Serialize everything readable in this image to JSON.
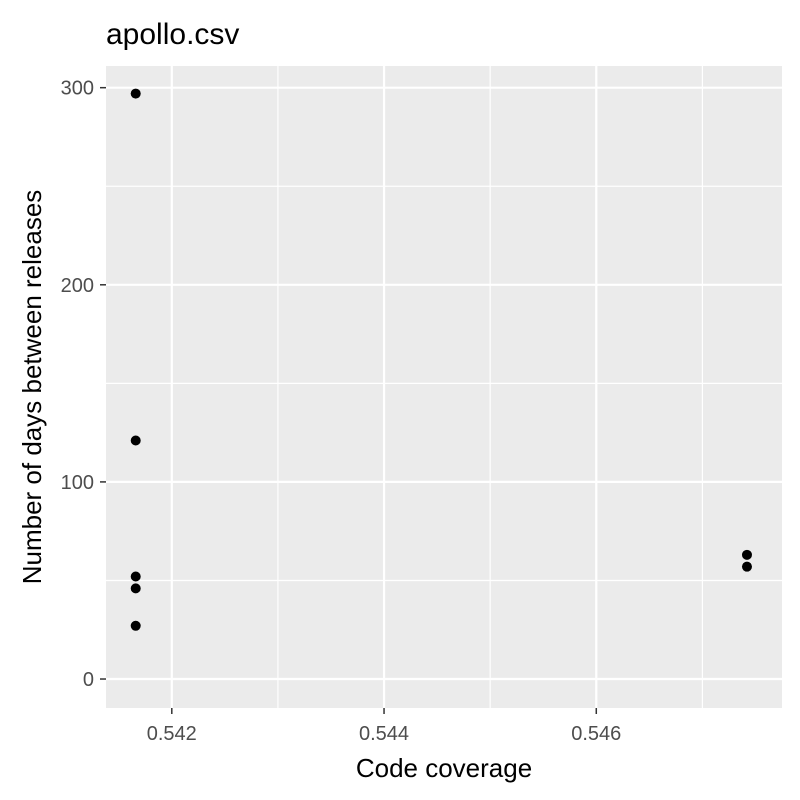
{
  "chart_data": {
    "type": "scatter",
    "title": "apollo.csv",
    "xlabel": "Code coverage",
    "ylabel": "Number of days between releases",
    "xlim": [
      0.54138,
      0.54775
    ],
    "ylim": [
      -14.7,
      311
    ],
    "xticks": [
      0.542,
      0.544,
      0.546
    ],
    "xtick_labels": [
      "0.542",
      "0.544",
      "0.546"
    ],
    "yticks": [
      0,
      100,
      200,
      300
    ],
    "ytick_labels": [
      "0",
      "100",
      "200",
      "300"
    ],
    "grid": true,
    "panel_color": "#ebebeb",
    "grid_color": "#ffffff",
    "point_color": "#000000",
    "points": [
      {
        "x": 0.54166,
        "y": 297
      },
      {
        "x": 0.54166,
        "y": 121
      },
      {
        "x": 0.54166,
        "y": 52
      },
      {
        "x": 0.54166,
        "y": 46
      },
      {
        "x": 0.54166,
        "y": 27
      },
      {
        "x": 0.54742,
        "y": 63
      },
      {
        "x": 0.54742,
        "y": 57
      }
    ]
  }
}
